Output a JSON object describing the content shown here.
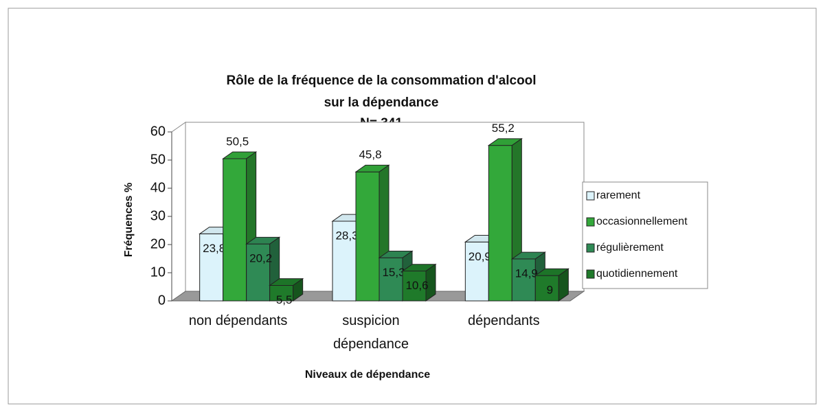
{
  "chart_data": {
    "type": "bar3d",
    "title": [
      "Rôle de la fréquence de la consommation d'alcool",
      "sur la dépendance"
    ],
    "subtitle": "N= 341",
    "ylabel": "Fréquences %",
    "xlabel": "Niveaux de dépendance",
    "categories": [
      "non dépendants",
      "suspicion dépendance",
      "dépendants"
    ],
    "series": [
      {
        "name": "rarement",
        "color": "#dcf3fb",
        "values": [
          23.8,
          28.3,
          20.9
        ],
        "value_labels": [
          "23,8",
          "28,3",
          "20,9"
        ]
      },
      {
        "name": "occasionnellement",
        "color": "#33a83a",
        "values": [
          50.5,
          45.8,
          55.2
        ],
        "value_labels": [
          "50,5",
          "45,8",
          "55,2"
        ]
      },
      {
        "name": "régulièrement",
        "color": "#2f8a55",
        "values": [
          20.2,
          15.3,
          14.9
        ],
        "value_labels": [
          "20,2",
          "15,3",
          "14,9"
        ]
      },
      {
        "name": "quotidiennement",
        "color": "#1f7a2a",
        "values": [
          5.5,
          10.6,
          9
        ],
        "value_labels": [
          "5,5",
          "10,6",
          "9"
        ]
      }
    ],
    "ylim": [
      0,
      60
    ],
    "yticks": [
      0,
      10,
      20,
      30,
      40,
      50,
      60
    ],
    "legend": "right"
  }
}
